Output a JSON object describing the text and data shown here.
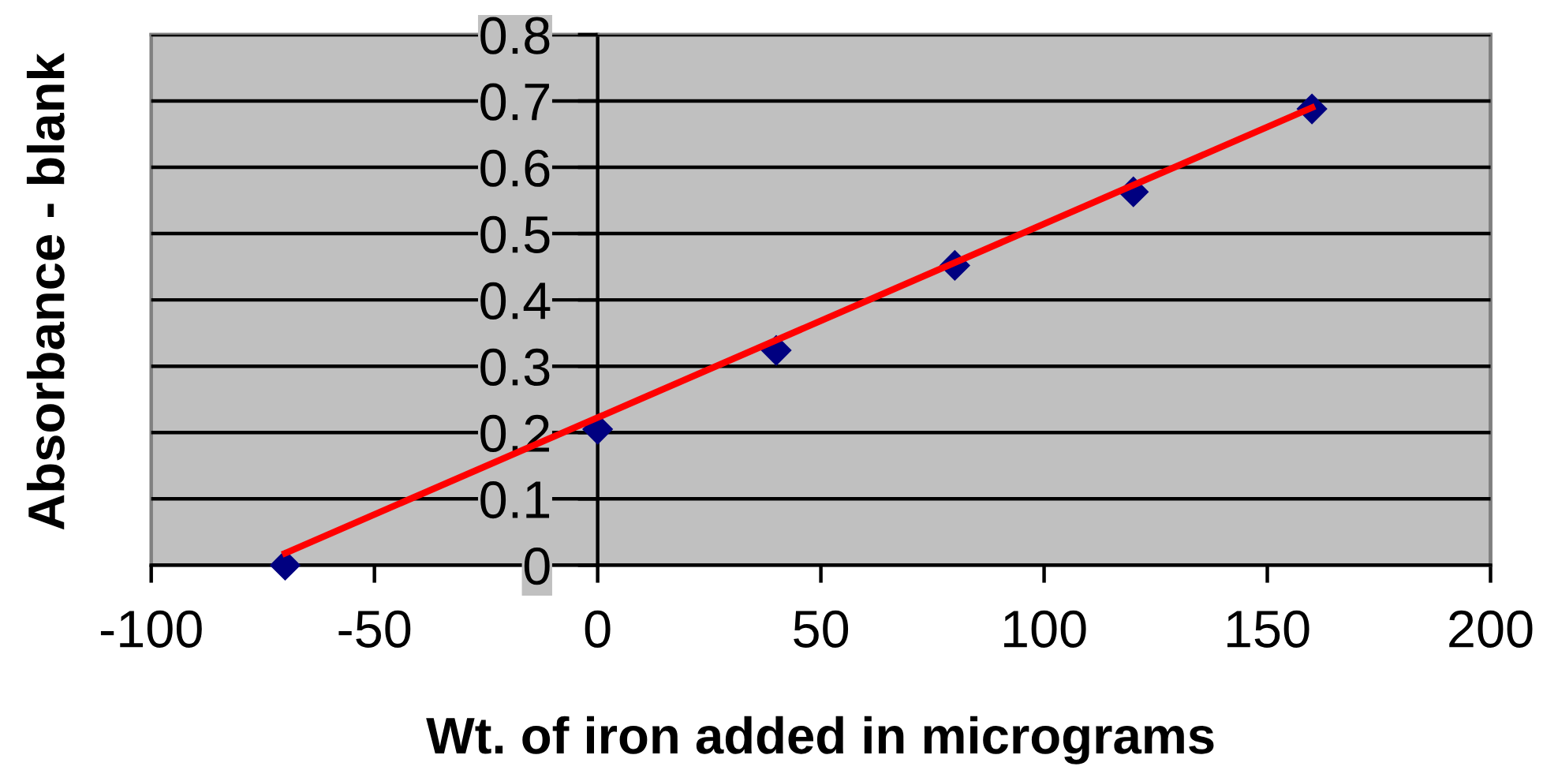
{
  "chart_data": {
    "type": "scatter",
    "xlabel": "Wt. of iron added in micrograms",
    "ylabel": "Absorbance - blank",
    "xlim": [
      -100,
      200
    ],
    "xticks": [
      -100,
      -50,
      0,
      50,
      100,
      150,
      200
    ],
    "ylim": [
      0,
      0.8
    ],
    "yticks": [
      0,
      0.1,
      0.2,
      0.3,
      0.4,
      0.5,
      0.6,
      0.7,
      0.8
    ],
    "grid": "y",
    "marker": "diamond",
    "series": [
      {
        "color": "#000080",
        "x": [
          -70,
          0,
          40,
          80,
          120,
          160
        ],
        "values": [
          0,
          0.205,
          0.324,
          0.452,
          0.563,
          0.688
        ]
      },
      {
        "type": "line",
        "color": "#ff0000",
        "marker": "none",
        "x": [
          -70,
          160
        ],
        "values": [
          0.018,
          0.69
        ]
      }
    ]
  }
}
